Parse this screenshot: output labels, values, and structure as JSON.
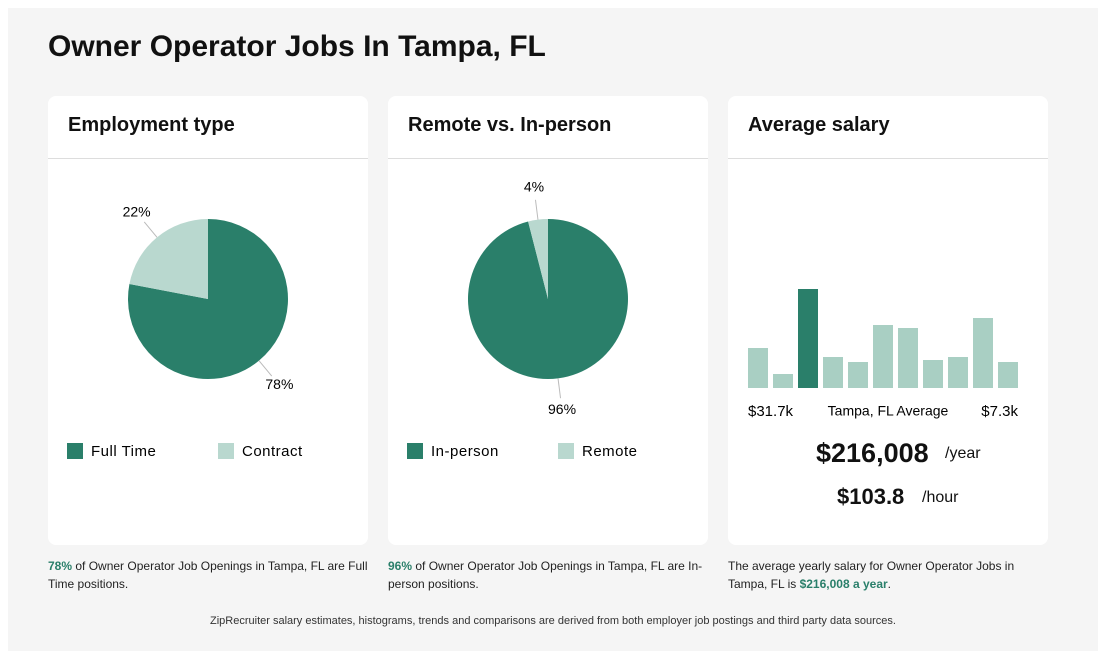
{
  "title": "Owner Operator Jobs In Tampa, FL",
  "cards": [
    {
      "heading": "Employment type",
      "chart": {
        "type": "pie",
        "categories": [
          "Full Time",
          "Contract"
        ],
        "values": [
          78,
          22
        ],
        "value_labels": [
          "78%",
          "22%"
        ],
        "colors": [
          "#2a7f6a",
          "#b9d8cf"
        ]
      },
      "caption": [
        {
          "text": "78%",
          "strong": true
        },
        {
          "text": " of Owner Operator Job Openings in Tampa, FL are Full Time positions.",
          "strong": false
        }
      ]
    },
    {
      "heading": "Remote vs. In-person",
      "chart": {
        "type": "pie",
        "categories": [
          "In-person",
          "Remote"
        ],
        "values": [
          96,
          4
        ],
        "value_labels": [
          "96%",
          "4%"
        ],
        "colors": [
          "#2a7f6a",
          "#b9d8cf"
        ]
      },
      "caption": [
        {
          "text": "96%",
          "strong": true
        },
        {
          "text": " of Owner Operator Job Openings in Tampa, FL are In-person positions.",
          "strong": false
        }
      ]
    },
    {
      "heading": "Average salary",
      "chart": {
        "type": "bar",
        "values": [
          40,
          14,
          99,
          31,
          26,
          63,
          60,
          28,
          31,
          70,
          26
        ],
        "colors": [
          "#a9cfc3",
          "#a9cfc3",
          "#2a7f6a",
          "#a9cfc3",
          "#a9cfc3",
          "#a9cfc3",
          "#a9cfc3",
          "#a9cfc3",
          "#a9cfc3",
          "#a9cfc3",
          "#a9cfc3"
        ],
        "min_label": "$31.7k",
        "mid_label": "Tampa, FL Average",
        "max_label": "$7.3k"
      },
      "salary_year": "$216,008",
      "year_unit": "/year",
      "salary_hour": "$103.8",
      "hour_unit": "/hour",
      "caption": [
        {
          "text": "The average yearly salary for Owner Operator Jobs in Tampa, FL is ",
          "strong": false
        },
        {
          "text": "$216,008 a year",
          "strong": true
        },
        {
          "text": ".",
          "strong": false
        }
      ]
    }
  ],
  "footer": "ZipRecruiter salary estimates, histograms, trends and comparisons are derived from both employer job postings and third party data sources."
}
